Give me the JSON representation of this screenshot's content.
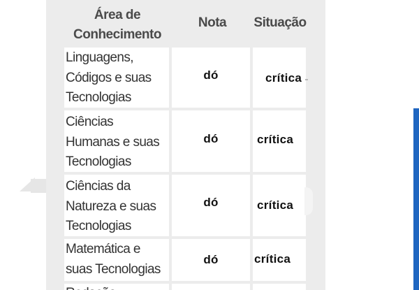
{
  "table": {
    "headers": {
      "area": "Área de Conhecimento",
      "grade": "Nota",
      "status": "Situação"
    },
    "rows": [
      {
        "area": "Linguagens, Códigos e suas Tecnologias",
        "grade": "dó",
        "status": "crítica"
      },
      {
        "area": "Ciências Humanas e suas Tecnologias",
        "grade": "dó",
        "status": "crítica"
      },
      {
        "area": "Ciências da Natureza e suas Tecnologias",
        "grade": "dó",
        "status": "crítica"
      },
      {
        "area": "Matemática e suas Tecnologias",
        "grade": "dó",
        "status": "crítica"
      },
      {
        "area": "Redação",
        "grade": "",
        "status": ""
      }
    ]
  },
  "colors": {
    "card_background": "#ececec",
    "cell_background": "#ffffff",
    "accent_bar": "#1f66c1"
  }
}
